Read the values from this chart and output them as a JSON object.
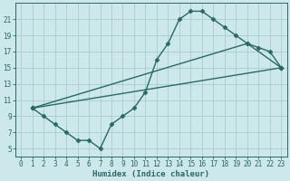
{
  "xlabel": "Humidex (Indice chaleur)",
  "bg_color": "#cce8ea",
  "grid_color": "#aaccce",
  "line_color": "#2a6868",
  "xlim": [
    -0.5,
    23.5
  ],
  "ylim": [
    4.0,
    23.0
  ],
  "xticks": [
    0,
    1,
    2,
    3,
    4,
    5,
    6,
    7,
    8,
    9,
    10,
    11,
    12,
    13,
    14,
    15,
    16,
    17,
    18,
    19,
    20,
    21,
    22,
    23
  ],
  "yticks": [
    5,
    7,
    9,
    11,
    13,
    15,
    17,
    19,
    21
  ],
  "line1_x": [
    1,
    2,
    3,
    4,
    5,
    6,
    7,
    8,
    9,
    10,
    11,
    12,
    13,
    14,
    15,
    16,
    17,
    18,
    19,
    20,
    21,
    22,
    23
  ],
  "line1_y": [
    10,
    9,
    8,
    7,
    6,
    6,
    5,
    8,
    9,
    10,
    12,
    16,
    18,
    21,
    22,
    22,
    21,
    20,
    19,
    18,
    17.5,
    17,
    15
  ],
  "line2_x": [
    1,
    23
  ],
  "line2_y": [
    10,
    15
  ],
  "line3_x": [
    1,
    20,
    23
  ],
  "line3_y": [
    10,
    18,
    15
  ],
  "marker": "D",
  "markersize": 2.5,
  "linewidth": 1.0,
  "tick_labelsize": 5.5,
  "xlabel_fontsize": 6.5
}
